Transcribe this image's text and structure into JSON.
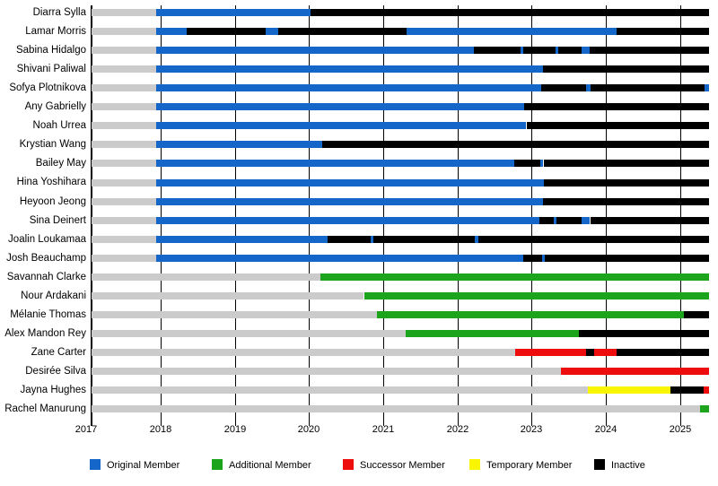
{
  "chart_data": {
    "type": "timeline",
    "title": "",
    "x_axis": {
      "min": 2017,
      "max": 2025.42,
      "ticks": [
        2017,
        2018,
        2019,
        2020,
        2021,
        2022,
        2023,
        2024,
        2025
      ]
    },
    "legend": [
      {
        "label": "Original Member",
        "type": "original"
      },
      {
        "label": "Additional Member",
        "type": "additional"
      },
      {
        "label": "Successor Member",
        "type": "successor"
      },
      {
        "label": "Temporary Member",
        "type": "temporary"
      },
      {
        "label": "Inactive",
        "type": "inactive"
      }
    ],
    "colors": {
      "original": "#1467C8",
      "additional": "#1CA51C",
      "successor": "#EE0D0D",
      "temporary": "#FAF500",
      "inactive": "#000000",
      "pre": "#CBCBCB"
    },
    "members": [
      {
        "name": "Diarra Sylla",
        "segments": [
          {
            "type": "pre",
            "start": 2017.07,
            "end": 2017.94
          },
          {
            "type": "original",
            "start": 2017.94,
            "end": 2020.02
          },
          {
            "type": "inactive",
            "start": 2020.02,
            "end": 2025.39
          }
        ]
      },
      {
        "name": "Lamar Morris",
        "segments": [
          {
            "type": "pre",
            "start": 2017.07,
            "end": 2017.94
          },
          {
            "type": "original",
            "start": 2017.94,
            "end": 2018.35
          },
          {
            "type": "inactive",
            "start": 2018.35,
            "end": 2019.42
          },
          {
            "type": "original",
            "start": 2019.42,
            "end": 2019.58
          },
          {
            "type": "inactive",
            "start": 2019.58,
            "end": 2021.32
          },
          {
            "type": "original",
            "start": 2021.32,
            "end": 2024.15
          },
          {
            "type": "inactive",
            "start": 2024.15,
            "end": 2025.39
          }
        ]
      },
      {
        "name": "Sabina Hidalgo",
        "segments": [
          {
            "type": "pre",
            "start": 2017.07,
            "end": 2017.94
          },
          {
            "type": "original",
            "start": 2017.94,
            "end": 2022.22
          },
          {
            "type": "inactive",
            "start": 2022.22,
            "end": 2022.85
          },
          {
            "type": "original",
            "start": 2022.85,
            "end": 2022.89
          },
          {
            "type": "inactive",
            "start": 2022.89,
            "end": 2023.32
          },
          {
            "type": "original",
            "start": 2023.32,
            "end": 2023.36
          },
          {
            "type": "inactive",
            "start": 2023.36,
            "end": 2023.67
          },
          {
            "type": "original",
            "start": 2023.67,
            "end": 2023.78
          },
          {
            "type": "inactive",
            "start": 2023.78,
            "end": 2025.39
          }
        ]
      },
      {
        "name": "Shivani Paliwal",
        "segments": [
          {
            "type": "pre",
            "start": 2017.07,
            "end": 2017.94
          },
          {
            "type": "original",
            "start": 2017.94,
            "end": 2023.15
          },
          {
            "type": "inactive",
            "start": 2023.15,
            "end": 2025.39
          }
        ]
      },
      {
        "name": "Sofya Plotnikova",
        "segments": [
          {
            "type": "pre",
            "start": 2017.07,
            "end": 2017.94
          },
          {
            "type": "original",
            "start": 2017.94,
            "end": 2023.13
          },
          {
            "type": "inactive",
            "start": 2023.13,
            "end": 2023.73
          },
          {
            "type": "original",
            "start": 2023.73,
            "end": 2023.79
          },
          {
            "type": "inactive",
            "start": 2023.79,
            "end": 2025.33
          },
          {
            "type": "original",
            "start": 2025.33,
            "end": 2025.39
          }
        ]
      },
      {
        "name": "Any Gabrielly",
        "segments": [
          {
            "type": "pre",
            "start": 2017.07,
            "end": 2017.94
          },
          {
            "type": "original",
            "start": 2017.94,
            "end": 2022.9
          },
          {
            "type": "inactive",
            "start": 2022.9,
            "end": 2025.39
          }
        ]
      },
      {
        "name": "Noah Urrea",
        "segments": [
          {
            "type": "pre",
            "start": 2017.07,
            "end": 2017.94
          },
          {
            "type": "original",
            "start": 2017.94,
            "end": 2022.93
          },
          {
            "type": "inactive",
            "start": 2022.93,
            "end": 2025.39
          }
        ]
      },
      {
        "name": "Krystian Wang",
        "segments": [
          {
            "type": "pre",
            "start": 2017.07,
            "end": 2017.94
          },
          {
            "type": "original",
            "start": 2017.94,
            "end": 2020.18
          },
          {
            "type": "inactive",
            "start": 2020.18,
            "end": 2025.39
          }
        ]
      },
      {
        "name": "Bailey May",
        "segments": [
          {
            "type": "pre",
            "start": 2017.07,
            "end": 2017.94
          },
          {
            "type": "original",
            "start": 2017.94,
            "end": 2022.77
          },
          {
            "type": "inactive",
            "start": 2022.77,
            "end": 2023.12
          },
          {
            "type": "original",
            "start": 2023.12,
            "end": 2023.16
          },
          {
            "type": "inactive",
            "start": 2023.16,
            "end": 2025.39
          }
        ]
      },
      {
        "name": "Hina Yoshihara",
        "segments": [
          {
            "type": "pre",
            "start": 2017.07,
            "end": 2017.94
          },
          {
            "type": "original",
            "start": 2017.94,
            "end": 2023.17
          },
          {
            "type": "inactive",
            "start": 2023.17,
            "end": 2025.39
          }
        ]
      },
      {
        "name": "Heyoon Jeong",
        "segments": [
          {
            "type": "pre",
            "start": 2017.07,
            "end": 2017.94
          },
          {
            "type": "original",
            "start": 2017.94,
            "end": 2023.15
          },
          {
            "type": "inactive",
            "start": 2023.15,
            "end": 2025.39
          }
        ]
      },
      {
        "name": "Sina Deinert",
        "segments": [
          {
            "type": "pre",
            "start": 2017.07,
            "end": 2017.94
          },
          {
            "type": "original",
            "start": 2017.94,
            "end": 2023.11
          },
          {
            "type": "inactive",
            "start": 2023.11,
            "end": 2023.3
          },
          {
            "type": "original",
            "start": 2023.3,
            "end": 2023.34
          },
          {
            "type": "inactive",
            "start": 2023.34,
            "end": 2023.67
          },
          {
            "type": "original",
            "start": 2023.67,
            "end": 2023.79
          },
          {
            "type": "inactive",
            "start": 2023.79,
            "end": 2025.39
          }
        ]
      },
      {
        "name": "Joalin Loukamaa",
        "segments": [
          {
            "type": "pre",
            "start": 2017.07,
            "end": 2017.94
          },
          {
            "type": "original",
            "start": 2017.94,
            "end": 2020.25
          },
          {
            "type": "inactive",
            "start": 2020.25,
            "end": 2020.83
          },
          {
            "type": "original",
            "start": 2020.83,
            "end": 2020.87
          },
          {
            "type": "inactive",
            "start": 2020.87,
            "end": 2022.24
          },
          {
            "type": "original",
            "start": 2022.24,
            "end": 2022.28
          },
          {
            "type": "inactive",
            "start": 2022.28,
            "end": 2025.39
          }
        ]
      },
      {
        "name": "Josh Beauchamp",
        "segments": [
          {
            "type": "pre",
            "start": 2017.07,
            "end": 2017.94
          },
          {
            "type": "original",
            "start": 2017.94,
            "end": 2022.89
          },
          {
            "type": "inactive",
            "start": 2022.89,
            "end": 2023.14
          },
          {
            "type": "original",
            "start": 2023.14,
            "end": 2023.18
          },
          {
            "type": "inactive",
            "start": 2023.18,
            "end": 2025.39
          }
        ]
      },
      {
        "name": "Savannah Clarke",
        "segments": [
          {
            "type": "pre",
            "start": 2017.07,
            "end": 2020.15
          },
          {
            "type": "additional",
            "start": 2020.15,
            "end": 2025.39
          }
        ]
      },
      {
        "name": "Nour Ardakani",
        "segments": [
          {
            "type": "pre",
            "start": 2017.07,
            "end": 2020.74
          },
          {
            "type": "additional",
            "start": 2020.74,
            "end": 2025.39
          }
        ]
      },
      {
        "name": "Mélanie Thomas",
        "segments": [
          {
            "type": "pre",
            "start": 2017.07,
            "end": 2020.92
          },
          {
            "type": "additional",
            "start": 2020.92,
            "end": 2025.05
          },
          {
            "type": "inactive",
            "start": 2025.05,
            "end": 2025.39
          }
        ]
      },
      {
        "name": "Alex Mandon Rey",
        "segments": [
          {
            "type": "pre",
            "start": 2017.07,
            "end": 2021.3
          },
          {
            "type": "additional",
            "start": 2021.3,
            "end": 2023.64
          },
          {
            "type": "inactive",
            "start": 2023.64,
            "end": 2025.39
          }
        ]
      },
      {
        "name": "Zane Carter",
        "segments": [
          {
            "type": "pre",
            "start": 2017.07,
            "end": 2022.78
          },
          {
            "type": "successor",
            "start": 2022.78,
            "end": 2023.73
          },
          {
            "type": "inactive",
            "start": 2023.73,
            "end": 2023.84
          },
          {
            "type": "successor",
            "start": 2023.84,
            "end": 2024.15
          },
          {
            "type": "inactive",
            "start": 2024.15,
            "end": 2025.39
          }
        ]
      },
      {
        "name": "Desirée Silva",
        "segments": [
          {
            "type": "pre",
            "start": 2017.07,
            "end": 2023.4
          },
          {
            "type": "successor",
            "start": 2023.4,
            "end": 2025.39
          }
        ]
      },
      {
        "name": "Jayna Hughes",
        "segments": [
          {
            "type": "pre",
            "start": 2017.07,
            "end": 2023.76
          },
          {
            "type": "temporary",
            "start": 2023.76,
            "end": 2024.87
          },
          {
            "type": "inactive",
            "start": 2024.87,
            "end": 2025.32
          },
          {
            "type": "successor",
            "start": 2025.32,
            "end": 2025.39
          }
        ]
      },
      {
        "name": "Rachel Manurung",
        "segments": [
          {
            "type": "pre",
            "start": 2017.07,
            "end": 2025.27
          },
          {
            "type": "additional",
            "start": 2025.27,
            "end": 2025.39
          }
        ]
      }
    ]
  }
}
